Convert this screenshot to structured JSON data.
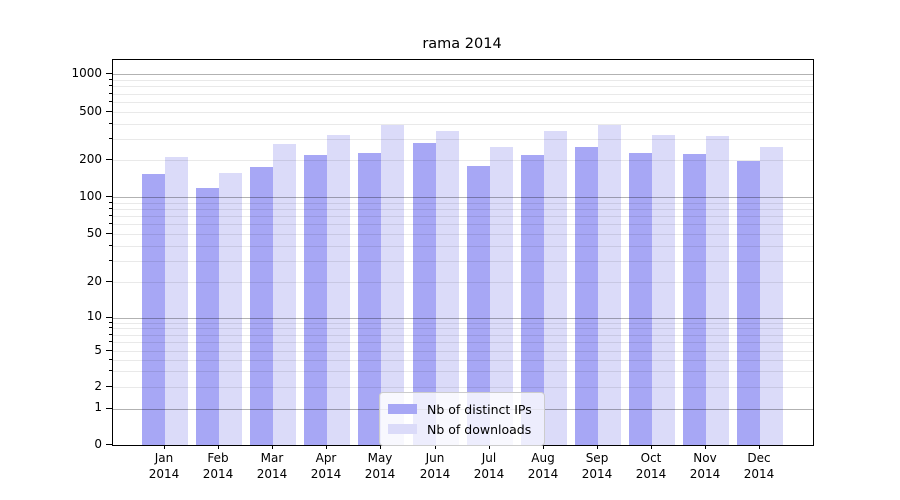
{
  "chart_data": {
    "type": "bar",
    "title": "rama 2014",
    "categories": [
      "Jan 2014",
      "Feb 2014",
      "Mar 2014",
      "Apr 2014",
      "May 2014",
      "Jun 2014",
      "Jul 2014",
      "Aug 2014",
      "Sep 2014",
      "Oct 2014",
      "Nov 2014",
      "Dec 2014"
    ],
    "series": [
      {
        "name": "Nb of distinct IPs",
        "color": "#a7a7f5",
        "values": [
          155,
          118,
          177,
          221,
          228,
          277,
          179,
          222,
          259,
          231,
          225,
          196
        ]
      },
      {
        "name": "Nb of downloads",
        "color": "#dbdbf9",
        "values": [
          211,
          157,
          271,
          324,
          389,
          346,
          257,
          349,
          389,
          323,
          317,
          258
        ]
      }
    ],
    "xlabel": "",
    "ylabel": "",
    "yscale": "symlog",
    "y_ticks": [
      0,
      1,
      2,
      5,
      10,
      20,
      50,
      100,
      200,
      500,
      1000
    ],
    "y_minor_ticks": [
      3,
      4,
      6,
      7,
      8,
      9,
      30,
      40,
      60,
      70,
      80,
      90,
      300,
      400,
      600,
      700,
      800,
      900
    ],
    "ylim": [
      0,
      1300
    ],
    "grid": "both",
    "legend_position": "lower center",
    "colors": {
      "distinct_ips_bar": "#a7a7f5",
      "downloads_bar": "#dbdbf9",
      "major_gridline": "#b2b2b2",
      "minor_gridline": "#e9e9e9",
      "axis_spine": "#000000",
      "background": "#ffffff"
    }
  }
}
